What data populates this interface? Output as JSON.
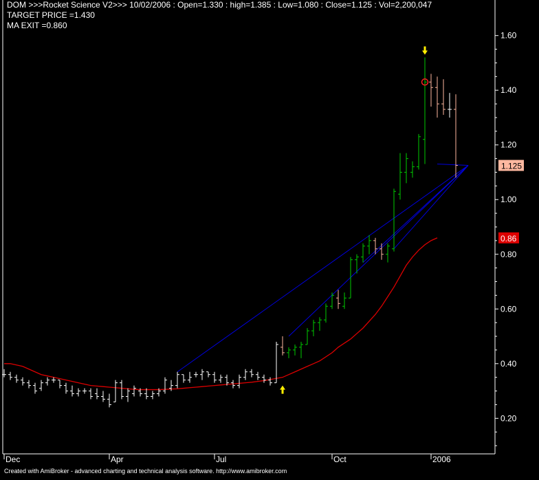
{
  "header": {
    "line1": "DOM >>>Rocket Science V2>>> 10/02/2006 : Open=1.330 : high=1.385 : Low=1.080 : Close=1.125 : Vol=2,200,047",
    "line2": "TARGET PRICE =1.430",
    "line3": "MA EXIT =0.860"
  },
  "footer": "Created with AmiBroker - advanced charting and technical analysis software. http://www.amibroker.com",
  "chart_data": {
    "type": "ohlc-bar",
    "ylim": [
      0.07,
      1.73
    ],
    "y_ticks": [
      "1.60",
      "1.40",
      "1.20",
      "1.00",
      "0.80",
      "0.60",
      "0.40",
      "0.20"
    ],
    "x_ticks": [
      "Dec",
      "Apr",
      "Jul",
      "Oct",
      "2006"
    ],
    "last_close_label": "1.125",
    "ma_label": "0.86",
    "colors": {
      "background": "#000000",
      "axis": "#ffffff",
      "up_bar": "#00cc00",
      "down_bar": "#ffb8a0",
      "neutral_bar": "#ffffff",
      "ma_line": "#dd0000",
      "fan_lines": "#0000dd",
      "signal_arrow": "#ffee00",
      "target_circle": "#ff2020",
      "close_badge": "#ffb8a0",
      "ma_badge": "#dd0000"
    },
    "bars": [
      {
        "o": 0.36,
        "h": 0.38,
        "l": 0.35,
        "c": 0.36
      },
      {
        "o": 0.36,
        "h": 0.37,
        "l": 0.34,
        "c": 0.35
      },
      {
        "o": 0.35,
        "h": 0.36,
        "l": 0.33,
        "c": 0.34
      },
      {
        "o": 0.34,
        "h": 0.35,
        "l": 0.32,
        "c": 0.33
      },
      {
        "o": 0.33,
        "h": 0.34,
        "l": 0.31,
        "c": 0.32
      },
      {
        "o": 0.32,
        "h": 0.33,
        "l": 0.29,
        "c": 0.3
      },
      {
        "o": 0.31,
        "h": 0.34,
        "l": 0.3,
        "c": 0.33
      },
      {
        "o": 0.33,
        "h": 0.35,
        "l": 0.32,
        "c": 0.34
      },
      {
        "o": 0.34,
        "h": 0.35,
        "l": 0.33,
        "c": 0.34
      },
      {
        "o": 0.34,
        "h": 0.34,
        "l": 0.31,
        "c": 0.32
      },
      {
        "o": 0.32,
        "h": 0.33,
        "l": 0.29,
        "c": 0.3
      },
      {
        "o": 0.3,
        "h": 0.32,
        "l": 0.28,
        "c": 0.29
      },
      {
        "o": 0.29,
        "h": 0.31,
        "l": 0.28,
        "c": 0.3
      },
      {
        "o": 0.3,
        "h": 0.31,
        "l": 0.29,
        "c": 0.3
      },
      {
        "o": 0.3,
        "h": 0.31,
        "l": 0.27,
        "c": 0.28
      },
      {
        "o": 0.29,
        "h": 0.31,
        "l": 0.27,
        "c": 0.28
      },
      {
        "o": 0.28,
        "h": 0.3,
        "l": 0.26,
        "c": 0.27
      },
      {
        "o": 0.27,
        "h": 0.29,
        "l": 0.24,
        "c": 0.25
      },
      {
        "o": 0.26,
        "h": 0.34,
        "l": 0.26,
        "c": 0.33
      },
      {
        "o": 0.33,
        "h": 0.34,
        "l": 0.27,
        "c": 0.28
      },
      {
        "o": 0.28,
        "h": 0.31,
        "l": 0.26,
        "c": 0.3
      },
      {
        "o": 0.29,
        "h": 0.32,
        "l": 0.28,
        "c": 0.31
      },
      {
        "o": 0.3,
        "h": 0.31,
        "l": 0.28,
        "c": 0.29
      },
      {
        "o": 0.29,
        "h": 0.31,
        "l": 0.27,
        "c": 0.28
      },
      {
        "o": 0.28,
        "h": 0.3,
        "l": 0.27,
        "c": 0.29
      },
      {
        "o": 0.29,
        "h": 0.31,
        "l": 0.28,
        "c": 0.3
      },
      {
        "o": 0.3,
        "h": 0.35,
        "l": 0.29,
        "c": 0.34
      },
      {
        "o": 0.31,
        "h": 0.34,
        "l": 0.3,
        "c": 0.32
      },
      {
        "o": 0.32,
        "h": 0.37,
        "l": 0.31,
        "c": 0.36
      },
      {
        "o": 0.36,
        "h": 0.36,
        "l": 0.33,
        "c": 0.34
      },
      {
        "o": 0.34,
        "h": 0.37,
        "l": 0.33,
        "c": 0.35
      },
      {
        "o": 0.36,
        "h": 0.37,
        "l": 0.35,
        "c": 0.36
      },
      {
        "o": 0.36,
        "h": 0.38,
        "l": 0.34,
        "c": 0.37
      },
      {
        "o": 0.37,
        "h": 0.37,
        "l": 0.35,
        "c": 0.36
      },
      {
        "o": 0.36,
        "h": 0.37,
        "l": 0.33,
        "c": 0.34
      },
      {
        "o": 0.34,
        "h": 0.36,
        "l": 0.33,
        "c": 0.35
      },
      {
        "o": 0.35,
        "h": 0.36,
        "l": 0.32,
        "c": 0.33
      },
      {
        "o": 0.33,
        "h": 0.34,
        "l": 0.31,
        "c": 0.32
      },
      {
        "o": 0.32,
        "h": 0.36,
        "l": 0.31,
        "c": 0.35
      },
      {
        "o": 0.35,
        "h": 0.38,
        "l": 0.34,
        "c": 0.37
      },
      {
        "o": 0.37,
        "h": 0.38,
        "l": 0.35,
        "c": 0.36
      },
      {
        "o": 0.36,
        "h": 0.37,
        "l": 0.34,
        "c": 0.35
      },
      {
        "o": 0.35,
        "h": 0.36,
        "l": 0.33,
        "c": 0.34
      },
      {
        "o": 0.34,
        "h": 0.35,
        "l": 0.32,
        "c": 0.33
      },
      {
        "o": 0.33,
        "h": 0.48,
        "l": 0.33,
        "c": 0.47
      },
      {
        "o": 0.46,
        "h": 0.5,
        "l": 0.43,
        "c": 0.44
      },
      {
        "o": 0.44,
        "h": 0.46,
        "l": 0.42,
        "c": 0.45
      },
      {
        "o": 0.45,
        "h": 0.47,
        "l": 0.43,
        "c": 0.46
      },
      {
        "o": 0.46,
        "h": 0.48,
        "l": 0.42,
        "c": 0.47
      },
      {
        "o": 0.47,
        "h": 0.53,
        "l": 0.47,
        "c": 0.52
      },
      {
        "o": 0.52,
        "h": 0.56,
        "l": 0.5,
        "c": 0.55
      },
      {
        "o": 0.55,
        "h": 0.57,
        "l": 0.52,
        "c": 0.56
      },
      {
        "o": 0.56,
        "h": 0.62,
        "l": 0.55,
        "c": 0.61
      },
      {
        "o": 0.61,
        "h": 0.66,
        "l": 0.6,
        "c": 0.65
      },
      {
        "o": 0.64,
        "h": 0.67,
        "l": 0.6,
        "c": 0.62
      },
      {
        "o": 0.61,
        "h": 0.66,
        "l": 0.6,
        "c": 0.64
      },
      {
        "o": 0.64,
        "h": 0.79,
        "l": 0.64,
        "c": 0.78
      },
      {
        "o": 0.78,
        "h": 0.8,
        "l": 0.73,
        "c": 0.79
      },
      {
        "o": 0.79,
        "h": 0.84,
        "l": 0.77,
        "c": 0.83
      },
      {
        "o": 0.83,
        "h": 0.87,
        "l": 0.8,
        "c": 0.85
      },
      {
        "o": 0.85,
        "h": 0.86,
        "l": 0.8,
        "c": 0.82
      },
      {
        "o": 0.82,
        "h": 0.84,
        "l": 0.78,
        "c": 0.8
      },
      {
        "o": 0.8,
        "h": 0.84,
        "l": 0.77,
        "c": 0.83
      },
      {
        "o": 0.82,
        "h": 1.04,
        "l": 0.81,
        "c": 1.03
      },
      {
        "o": 1.02,
        "h": 1.17,
        "l": 1.0,
        "c": 1.1
      },
      {
        "o": 1.1,
        "h": 1.17,
        "l": 1.06,
        "c": 1.15
      },
      {
        "o": 1.1,
        "h": 1.14,
        "l": 1.08,
        "c": 1.12
      },
      {
        "o": 1.12,
        "h": 1.24,
        "l": 1.11,
        "c": 1.23
      },
      {
        "o": 1.22,
        "h": 1.52,
        "l": 1.13,
        "c": 1.43
      },
      {
        "o": 1.43,
        "h": 1.46,
        "l": 1.34,
        "c": 1.41
      },
      {
        "o": 1.41,
        "h": 1.45,
        "l": 1.3,
        "c": 1.35
      },
      {
        "o": 1.35,
        "h": 1.44,
        "l": 1.31,
        "c": 1.33
      },
      {
        "o": 1.33,
        "h": 1.39,
        "l": 1.3,
        "c": 1.33
      },
      {
        "o": 1.33,
        "h": 1.385,
        "l": 1.08,
        "c": 1.125
      }
    ],
    "moving_average": [
      0.4,
      0.4,
      0.395,
      0.39,
      0.38,
      0.37,
      0.36,
      0.355,
      0.35,
      0.345,
      0.34,
      0.335,
      0.33,
      0.325,
      0.32,
      0.318,
      0.316,
      0.314,
      0.312,
      0.31,
      0.308,
      0.306,
      0.305,
      0.305,
      0.305,
      0.305,
      0.306,
      0.307,
      0.308,
      0.31,
      0.312,
      0.314,
      0.316,
      0.318,
      0.32,
      0.322,
      0.324,
      0.326,
      0.328,
      0.33,
      0.332,
      0.335,
      0.338,
      0.342,
      0.346,
      0.35,
      0.36,
      0.37,
      0.38,
      0.39,
      0.4,
      0.41,
      0.425,
      0.44,
      0.46,
      0.475,
      0.49,
      0.51,
      0.53,
      0.555,
      0.58,
      0.61,
      0.645,
      0.68,
      0.72,
      0.76,
      0.79,
      0.815,
      0.835,
      0.85,
      0.86
    ],
    "fan_lines": [
      {
        "from_bar": 28,
        "from_y": 0.37,
        "to_bar": 75,
        "to_y": 1.125
      },
      {
        "from_bar": 46,
        "from_y": 0.5,
        "to_bar": 75,
        "to_y": 1.125
      },
      {
        "from_bar": 58,
        "from_y": 0.77,
        "to_bar": 75,
        "to_y": 1.125
      },
      {
        "from_bar": 63,
        "from_y": 0.82,
        "to_bar": 75,
        "to_y": 1.125
      },
      {
        "from_bar": 70,
        "from_y": 1.13,
        "to_bar": 75,
        "to_y": 1.125
      }
    ],
    "buy_arrow": {
      "bar": 45,
      "y": 0.33
    },
    "sell_arrow": {
      "bar": 68,
      "y": 1.52
    },
    "target_circle": {
      "bar": 68,
      "y": 1.43
    }
  }
}
